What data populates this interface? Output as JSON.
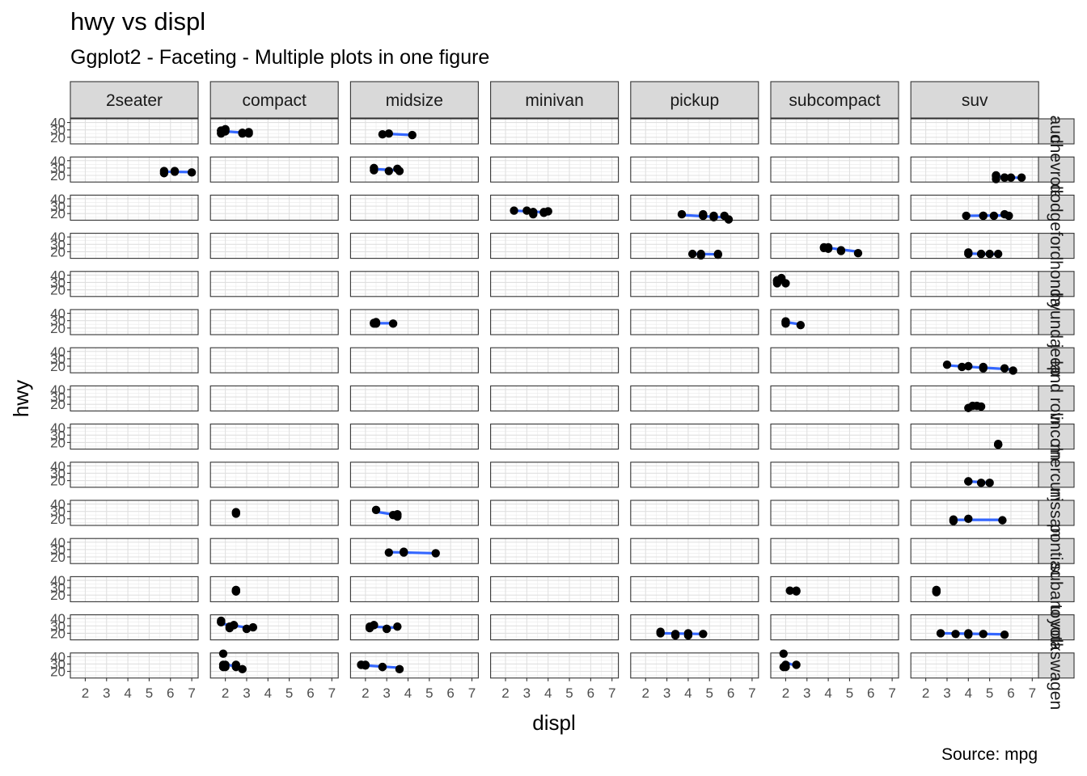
{
  "chart_data": {
    "type": "scatter",
    "title": "hwy vs displ",
    "subtitle": "Ggplot2 - Faceting - Multiple plots in one figure",
    "caption": "Source: mpg",
    "xlabel": "displ",
    "ylabel": "hwy",
    "xlim": [
      1.3,
      7.3
    ],
    "ylim": [
      11,
      45
    ],
    "x_ticks": [
      "2",
      "3",
      "4",
      "5",
      "6",
      "7"
    ],
    "y_ticks": [
      "20",
      "30",
      "40"
    ],
    "grid": true,
    "smooth_method": "lm",
    "columns": [
      "2seater",
      "compact",
      "midsize",
      "minivan",
      "pickup",
      "subcompact",
      "suv"
    ],
    "rows": [
      "audi",
      "chevrolet",
      "dodge",
      "ford",
      "honda",
      "hyundai",
      "jeep",
      "land rover",
      "lincoln",
      "mercury",
      "nissan",
      "pontiac",
      "subaru",
      "toyota",
      "volkswagen"
    ],
    "row_strip_labels": [
      "audi",
      "chevrolet",
      "dodge",
      "ford",
      "honda",
      "hyundai",
      "jeep",
      "land rover",
      "lincoln",
      "mercury",
      "nissan",
      "pontiac",
      "subaru",
      "toyota",
      "volkswagen"
    ],
    "panels": [
      {
        "row": "audi",
        "col": "compact",
        "points": [
          [
            1.8,
            29
          ],
          [
            1.8,
            29
          ],
          [
            2.0,
            31
          ],
          [
            2.0,
            30
          ],
          [
            2.8,
            26
          ],
          [
            2.8,
            26
          ],
          [
            3.1,
            27
          ],
          [
            1.8,
            26
          ],
          [
            1.8,
            25
          ],
          [
            2.0,
            28
          ],
          [
            2.8,
            25
          ],
          [
            3.1,
            25
          ]
        ],
        "fit": [
          [
            1.8,
            28.5
          ],
          [
            3.1,
            25.5
          ]
        ]
      },
      {
        "row": "audi",
        "col": "midsize",
        "points": [
          [
            2.8,
            24
          ],
          [
            3.1,
            25
          ],
          [
            4.2,
            23
          ]
        ],
        "fit": [
          [
            2.8,
            25
          ],
          [
            4.2,
            23
          ]
        ]
      },
      {
        "row": "chevrolet",
        "col": "2seater",
        "points": [
          [
            5.7,
            23
          ],
          [
            5.7,
            26
          ],
          [
            6.2,
            26
          ],
          [
            6.2,
            25
          ],
          [
            7.0,
            24
          ]
        ],
        "fit": [
          [
            5.7,
            25
          ],
          [
            7.0,
            24.5
          ]
        ]
      },
      {
        "row": "chevrolet",
        "col": "midsize",
        "points": [
          [
            2.4,
            27
          ],
          [
            2.4,
            30
          ],
          [
            3.1,
            26
          ],
          [
            3.5,
            29
          ],
          [
            3.6,
            26
          ]
        ],
        "fit": [
          [
            2.4,
            28.5
          ],
          [
            3.6,
            27
          ]
        ]
      },
      {
        "row": "chevrolet",
        "col": "suv",
        "points": [
          [
            5.3,
            20
          ],
          [
            5.3,
            15
          ],
          [
            5.3,
            20
          ],
          [
            5.7,
            17
          ],
          [
            6.0,
            17
          ],
          [
            5.7,
            17
          ],
          [
            6.5,
            17
          ],
          [
            5.3,
            19
          ]
        ],
        "fit": [
          [
            5.3,
            18.5
          ],
          [
            6.5,
            16.5
          ]
        ]
      },
      {
        "row": "dodge",
        "col": "minivan",
        "points": [
          [
            2.4,
            24
          ],
          [
            3.0,
            24
          ],
          [
            3.3,
            22
          ],
          [
            3.3,
            19
          ],
          [
            3.3,
            22
          ],
          [
            3.8,
            22
          ],
          [
            3.8,
            21
          ],
          [
            4.0,
            23
          ]
        ],
        "fit": [
          [
            2.4,
            24
          ],
          [
            4.0,
            21.5
          ]
        ]
      },
      {
        "row": "dodge",
        "col": "pickup",
        "points": [
          [
            3.7,
            19
          ],
          [
            4.7,
            17
          ],
          [
            4.7,
            17
          ],
          [
            5.2,
            17
          ],
          [
            5.2,
            15
          ],
          [
            5.7,
            17
          ],
          [
            5.9,
            12
          ],
          [
            4.7,
            19
          ]
        ],
        "fit": [
          [
            3.7,
            18
          ],
          [
            5.9,
            14.5
          ]
        ]
      },
      {
        "row": "dodge",
        "col": "suv",
        "points": [
          [
            3.9,
            17
          ],
          [
            4.7,
            17
          ],
          [
            4.7,
            17
          ],
          [
            5.2,
            17
          ],
          [
            5.7,
            19
          ],
          [
            5.9,
            17
          ]
        ],
        "fit": [
          [
            3.9,
            17
          ],
          [
            5.9,
            17.5
          ]
        ]
      },
      {
        "row": "ford",
        "col": "pickup",
        "points": [
          [
            4.2,
            17
          ],
          [
            4.6,
            17
          ],
          [
            4.6,
            15
          ],
          [
            5.4,
            17
          ],
          [
            5.4,
            16
          ]
        ],
        "fit": [
          [
            4.2,
            17
          ],
          [
            5.4,
            16.5
          ]
        ]
      },
      {
        "row": "ford",
        "col": "subcompact",
        "points": [
          [
            3.8,
            26
          ],
          [
            3.8,
            25
          ],
          [
            4.0,
            26
          ],
          [
            4.0,
            24
          ],
          [
            4.6,
            21
          ],
          [
            4.6,
            22
          ],
          [
            5.4,
            18
          ]
        ],
        "fit": [
          [
            3.8,
            26
          ],
          [
            5.4,
            20
          ]
        ]
      },
      {
        "row": "ford",
        "col": "suv",
        "points": [
          [
            4.0,
            17
          ],
          [
            4.0,
            19
          ],
          [
            4.6,
            17
          ],
          [
            4.6,
            17
          ],
          [
            5.0,
            17
          ],
          [
            5.4,
            17
          ]
        ],
        "fit": [
          [
            4.0,
            17.5
          ],
          [
            5.4,
            16.5
          ]
        ]
      },
      {
        "row": "honda",
        "col": "subcompact",
        "points": [
          [
            1.6,
            33
          ],
          [
            1.6,
            32
          ],
          [
            1.6,
            32
          ],
          [
            1.6,
            29
          ],
          [
            1.8,
            34
          ],
          [
            1.8,
            36
          ],
          [
            2.0,
            29
          ]
        ],
        "fit": [
          [
            1.6,
            32.5
          ],
          [
            2.0,
            31.5
          ]
        ]
      },
      {
        "row": "hyundai",
        "col": "midsize",
        "points": [
          [
            2.4,
            26
          ],
          [
            2.4,
            27
          ],
          [
            2.5,
            26
          ],
          [
            2.5,
            28
          ],
          [
            3.3,
            26
          ]
        ],
        "fit": [
          [
            2.4,
            26.5
          ],
          [
            3.3,
            26.5
          ]
        ]
      },
      {
        "row": "hyundai",
        "col": "subcompact",
        "points": [
          [
            2.0,
            28
          ],
          [
            2.0,
            26
          ],
          [
            2.0,
            29
          ],
          [
            2.7,
            24
          ]
        ],
        "fit": [
          [
            2.0,
            28
          ],
          [
            2.7,
            25
          ]
        ]
      },
      {
        "row": "jeep",
        "col": "suv",
        "points": [
          [
            3.0,
            22
          ],
          [
            3.7,
            19
          ],
          [
            4.0,
            20
          ],
          [
            4.7,
            17
          ],
          [
            4.7,
            19
          ],
          [
            5.7,
            17
          ],
          [
            6.1,
            14
          ]
        ],
        "fit": [
          [
            3.0,
            21
          ],
          [
            6.1,
            15.5
          ]
        ]
      },
      {
        "row": "land rover",
        "col": "suv",
        "points": [
          [
            4.0,
            15
          ],
          [
            4.2,
            18
          ],
          [
            4.4,
            18
          ],
          [
            4.6,
            17
          ]
        ],
        "fit": [
          [
            4.0,
            17
          ],
          [
            4.6,
            17
          ]
        ]
      },
      {
        "row": "lincoln",
        "col": "suv",
        "points": [
          [
            5.4,
            18
          ],
          [
            5.4,
            17
          ],
          [
            5.4,
            17
          ]
        ],
        "fit": []
      },
      {
        "row": "mercury",
        "col": "suv",
        "points": [
          [
            4.0,
            19
          ],
          [
            4.0,
            19
          ],
          [
            4.6,
            17
          ],
          [
            5.0,
            17
          ]
        ],
        "fit": [
          [
            4.0,
            19
          ],
          [
            5.0,
            17
          ]
        ]
      },
      {
        "row": "nissan",
        "col": "compact",
        "points": [
          [
            2.5,
            29
          ],
          [
            2.5,
            27
          ]
        ],
        "fit": []
      },
      {
        "row": "nissan",
        "col": "midsize",
        "points": [
          [
            2.5,
            32
          ],
          [
            3.5,
            26
          ],
          [
            3.5,
            23
          ],
          [
            3.3,
            25
          ],
          [
            3.5,
            26
          ]
        ],
        "fit": [
          [
            2.5,
            29.5
          ],
          [
            3.5,
            25
          ]
        ]
      },
      {
        "row": "nissan",
        "col": "suv",
        "points": [
          [
            3.3,
            17
          ],
          [
            3.3,
            19
          ],
          [
            4.0,
            20
          ],
          [
            5.6,
            18
          ]
        ],
        "fit": [
          [
            3.3,
            18.5
          ],
          [
            5.6,
            18.5
          ]
        ]
      },
      {
        "row": "pontiac",
        "col": "midsize",
        "points": [
          [
            3.1,
            26
          ],
          [
            3.8,
            27
          ],
          [
            3.8,
            26
          ],
          [
            5.3,
            25
          ]
        ],
        "fit": [
          [
            3.1,
            26.5
          ],
          [
            5.3,
            25
          ]
        ]
      },
      {
        "row": "subaru",
        "col": "compact",
        "points": [
          [
            2.5,
            26
          ],
          [
            2.5,
            25
          ],
          [
            2.5,
            27
          ],
          [
            2.5,
            25
          ]
        ],
        "fit": []
      },
      {
        "row": "subaru",
        "col": "subcompact",
        "points": [
          [
            2.2,
            26
          ],
          [
            2.5,
            26
          ],
          [
            2.5,
            25
          ]
        ],
        "fit": [
          [
            2.2,
            26
          ],
          [
            2.5,
            25.5
          ]
        ]
      },
      {
        "row": "subaru",
        "col": "suv",
        "points": [
          [
            2.5,
            25
          ],
          [
            2.5,
            24
          ],
          [
            2.5,
            27
          ],
          [
            2.5,
            25
          ]
        ],
        "fit": []
      },
      {
        "row": "toyota",
        "col": "compact",
        "points": [
          [
            1.8,
            35
          ],
          [
            1.8,
            37
          ],
          [
            1.8,
            35
          ],
          [
            2.2,
            29
          ],
          [
            2.2,
            27
          ],
          [
            2.4,
            31
          ],
          [
            2.4,
            31
          ],
          [
            3.0,
            26
          ],
          [
            3.0,
            26
          ],
          [
            3.3,
            28
          ]
        ],
        "fit": [
          [
            1.8,
            33
          ],
          [
            3.3,
            26.5
          ]
        ]
      },
      {
        "row": "toyota",
        "col": "midsize",
        "points": [
          [
            2.2,
            29
          ],
          [
            2.2,
            27
          ],
          [
            2.4,
            31
          ],
          [
            2.4,
            31
          ],
          [
            3.0,
            26
          ],
          [
            3.0,
            26
          ],
          [
            3.5,
            29
          ]
        ],
        "fit": [
          [
            2.2,
            29
          ],
          [
            3.5,
            27.5
          ]
        ]
      },
      {
        "row": "toyota",
        "col": "pickup",
        "points": [
          [
            2.7,
            20
          ],
          [
            2.7,
            22
          ],
          [
            3.4,
            17
          ],
          [
            3.4,
            19
          ],
          [
            4.0,
            17
          ],
          [
            4.0,
            20
          ],
          [
            4.7,
            19
          ]
        ],
        "fit": [
          [
            2.7,
            20
          ],
          [
            4.7,
            19
          ]
        ]
      },
      {
        "row": "toyota",
        "col": "suv",
        "points": [
          [
            2.7,
            20
          ],
          [
            3.4,
            19
          ],
          [
            4.0,
            20
          ],
          [
            4.7,
            19
          ],
          [
            5.7,
            18
          ],
          [
            4.0,
            18
          ]
        ],
        "fit": [
          [
            2.7,
            20
          ],
          [
            5.7,
            18.5
          ]
        ]
      },
      {
        "row": "volkswagen",
        "col": "compact",
        "points": [
          [
            1.9,
            44
          ],
          [
            1.9,
            26
          ],
          [
            2.0,
            29
          ],
          [
            2.0,
            26
          ],
          [
            2.5,
            29
          ],
          [
            2.5,
            26
          ],
          [
            2.8,
            23
          ],
          [
            1.9,
            29
          ]
        ],
        "fit": [
          [
            1.9,
            30
          ],
          [
            2.8,
            25
          ]
        ]
      },
      {
        "row": "volkswagen",
        "col": "midsize",
        "points": [
          [
            1.8,
            29
          ],
          [
            1.8,
            29
          ],
          [
            2.0,
            28
          ],
          [
            2.0,
            29
          ],
          [
            2.8,
            26
          ],
          [
            2.8,
            26
          ],
          [
            3.6,
            23
          ]
        ],
        "fit": [
          [
            1.8,
            28.5
          ],
          [
            3.6,
            25
          ]
        ]
      },
      {
        "row": "volkswagen",
        "col": "subcompact",
        "points": [
          [
            1.9,
            44
          ],
          [
            1.9,
            26
          ],
          [
            2.0,
            29
          ],
          [
            2.0,
            26
          ],
          [
            2.5,
            29
          ]
        ],
        "fit": [
          [
            1.9,
            33
          ],
          [
            2.5,
            27.5
          ]
        ]
      }
    ]
  }
}
